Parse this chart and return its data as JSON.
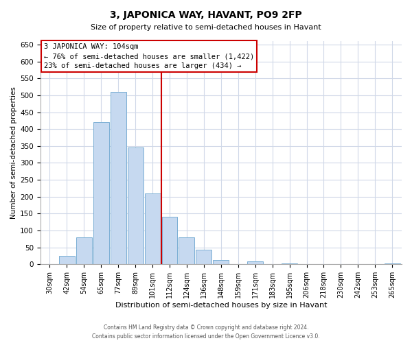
{
  "title": "3, JAPONICA WAY, HAVANT, PO9 2FP",
  "subtitle": "Size of property relative to semi-detached houses in Havant",
  "xlabel": "Distribution of semi-detached houses by size in Havant",
  "ylabel": "Number of semi-detached properties",
  "bar_labels": [
    "30sqm",
    "42sqm",
    "54sqm",
    "65sqm",
    "77sqm",
    "89sqm",
    "101sqm",
    "112sqm",
    "124sqm",
    "136sqm",
    "148sqm",
    "159sqm",
    "171sqm",
    "183sqm",
    "195sqm",
    "206sqm",
    "218sqm",
    "230sqm",
    "242sqm",
    "253sqm",
    "265sqm"
  ],
  "bar_values": [
    0,
    25,
    80,
    420,
    510,
    345,
    210,
    140,
    80,
    43,
    12,
    0,
    8,
    0,
    3,
    0,
    0,
    0,
    0,
    0,
    3
  ],
  "bar_color": "#c6d9f0",
  "bar_edge_color": "#7bafd4",
  "vline_color": "#cc0000",
  "vline_x_index": 6,
  "annotation_title": "3 JAPONICA WAY: 104sqm",
  "annotation_line1": "← 76% of semi-detached houses are smaller (1,422)",
  "annotation_line2": "23% of semi-detached houses are larger (434) →",
  "annotation_box_edge": "#cc0000",
  "ylim": [
    0,
    660
  ],
  "yticks": [
    0,
    50,
    100,
    150,
    200,
    250,
    300,
    350,
    400,
    450,
    500,
    550,
    600,
    650
  ],
  "footer1": "Contains HM Land Registry data © Crown copyright and database right 2024.",
  "footer2": "Contains public sector information licensed under the Open Government Licence v3.0.",
  "bg_color": "#ffffff",
  "plot_bg_color": "#ffffff",
  "grid_color": "#d0d8e8"
}
